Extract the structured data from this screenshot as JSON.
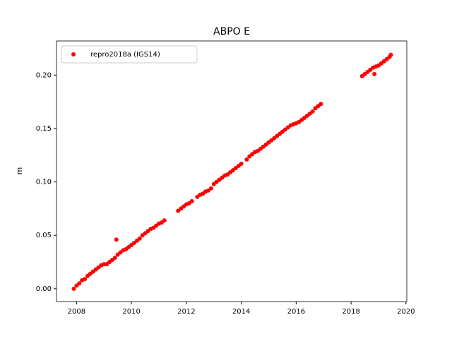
{
  "chart_data": {
    "type": "scatter",
    "title": "ABPO E",
    "y_label": "m",
    "legend": "upper left",
    "xlim": [
      2007.27,
      2020.03
    ],
    "xticks": [
      2008,
      2010,
      2012,
      2014,
      2016,
      2018,
      2020
    ],
    "ylim": [
      -0.012,
      0.232
    ],
    "yticks": [
      {
        "value": 0,
        "label": "0.00"
      },
      {
        "value": 0.05,
        "label": "0.05"
      },
      {
        "value": 0.1,
        "label": "0.10"
      },
      {
        "value": 0.15,
        "label": "0.15"
      },
      {
        "value": 0.2,
        "label": "0.20"
      }
    ],
    "series": [
      {
        "name": "repro2018a (IGS14)",
        "color": "#ff0000",
        "x": [
          2007.9,
          2008.0,
          2008.1,
          2008.2,
          2008.3,
          2008.4,
          2008.5,
          2008.6,
          2008.7,
          2008.8,
          2008.9,
          2009.0,
          2009.1,
          2009.2,
          2009.3,
          2009.4,
          2009.45,
          2009.5,
          2009.6,
          2009.7,
          2009.8,
          2009.9,
          2010.0,
          2010.1,
          2010.2,
          2010.3,
          2010.4,
          2010.5,
          2010.6,
          2010.7,
          2010.8,
          2010.9,
          2011.0,
          2011.1,
          2011.2,
          2011.7,
          2011.8,
          2011.9,
          2012.0,
          2012.1,
          2012.2,
          2012.4,
          2012.5,
          2012.6,
          2012.7,
          2012.8,
          2012.9,
          2013.0,
          2013.1,
          2013.2,
          2013.3,
          2013.4,
          2013.5,
          2013.6,
          2013.7,
          2013.8,
          2013.9,
          2014.0,
          2014.2,
          2014.3,
          2014.4,
          2014.5,
          2014.6,
          2014.7,
          2014.8,
          2014.9,
          2015.0,
          2015.1,
          2015.2,
          2015.3,
          2015.4,
          2015.5,
          2015.6,
          2015.7,
          2015.8,
          2015.9,
          2016.0,
          2016.1,
          2016.2,
          2016.3,
          2016.4,
          2016.5,
          2016.6,
          2016.7,
          2016.8,
          2016.9,
          2018.4,
          2018.5,
          2018.6,
          2018.7,
          2018.8,
          2018.85,
          2018.9,
          2019.0,
          2019.1,
          2019.2,
          2019.3,
          2019.4,
          2019.45
        ],
        "y": [
          0.0,
          0.003,
          0.005,
          0.008,
          0.009,
          0.012,
          0.014,
          0.016,
          0.018,
          0.02,
          0.022,
          0.023,
          0.023,
          0.025,
          0.027,
          0.029,
          0.046,
          0.032,
          0.034,
          0.036,
          0.037,
          0.039,
          0.041,
          0.043,
          0.045,
          0.047,
          0.05,
          0.052,
          0.054,
          0.056,
          0.057,
          0.059,
          0.061,
          0.062,
          0.064,
          0.073,
          0.075,
          0.077,
          0.079,
          0.08,
          0.082,
          0.086,
          0.088,
          0.089,
          0.091,
          0.092,
          0.094,
          0.098,
          0.1,
          0.102,
          0.104,
          0.106,
          0.107,
          0.109,
          0.111,
          0.113,
          0.115,
          0.117,
          0.121,
          0.124,
          0.126,
          0.128,
          0.129,
          0.131,
          0.133,
          0.135,
          0.137,
          0.139,
          0.141,
          0.143,
          0.145,
          0.147,
          0.149,
          0.151,
          0.153,
          0.154,
          0.155,
          0.156,
          0.158,
          0.16,
          0.162,
          0.164,
          0.166,
          0.169,
          0.171,
          0.173,
          0.199,
          0.201,
          0.203,
          0.205,
          0.207,
          0.201,
          0.208,
          0.209,
          0.211,
          0.213,
          0.215,
          0.217,
          0.219
        ]
      }
    ]
  }
}
